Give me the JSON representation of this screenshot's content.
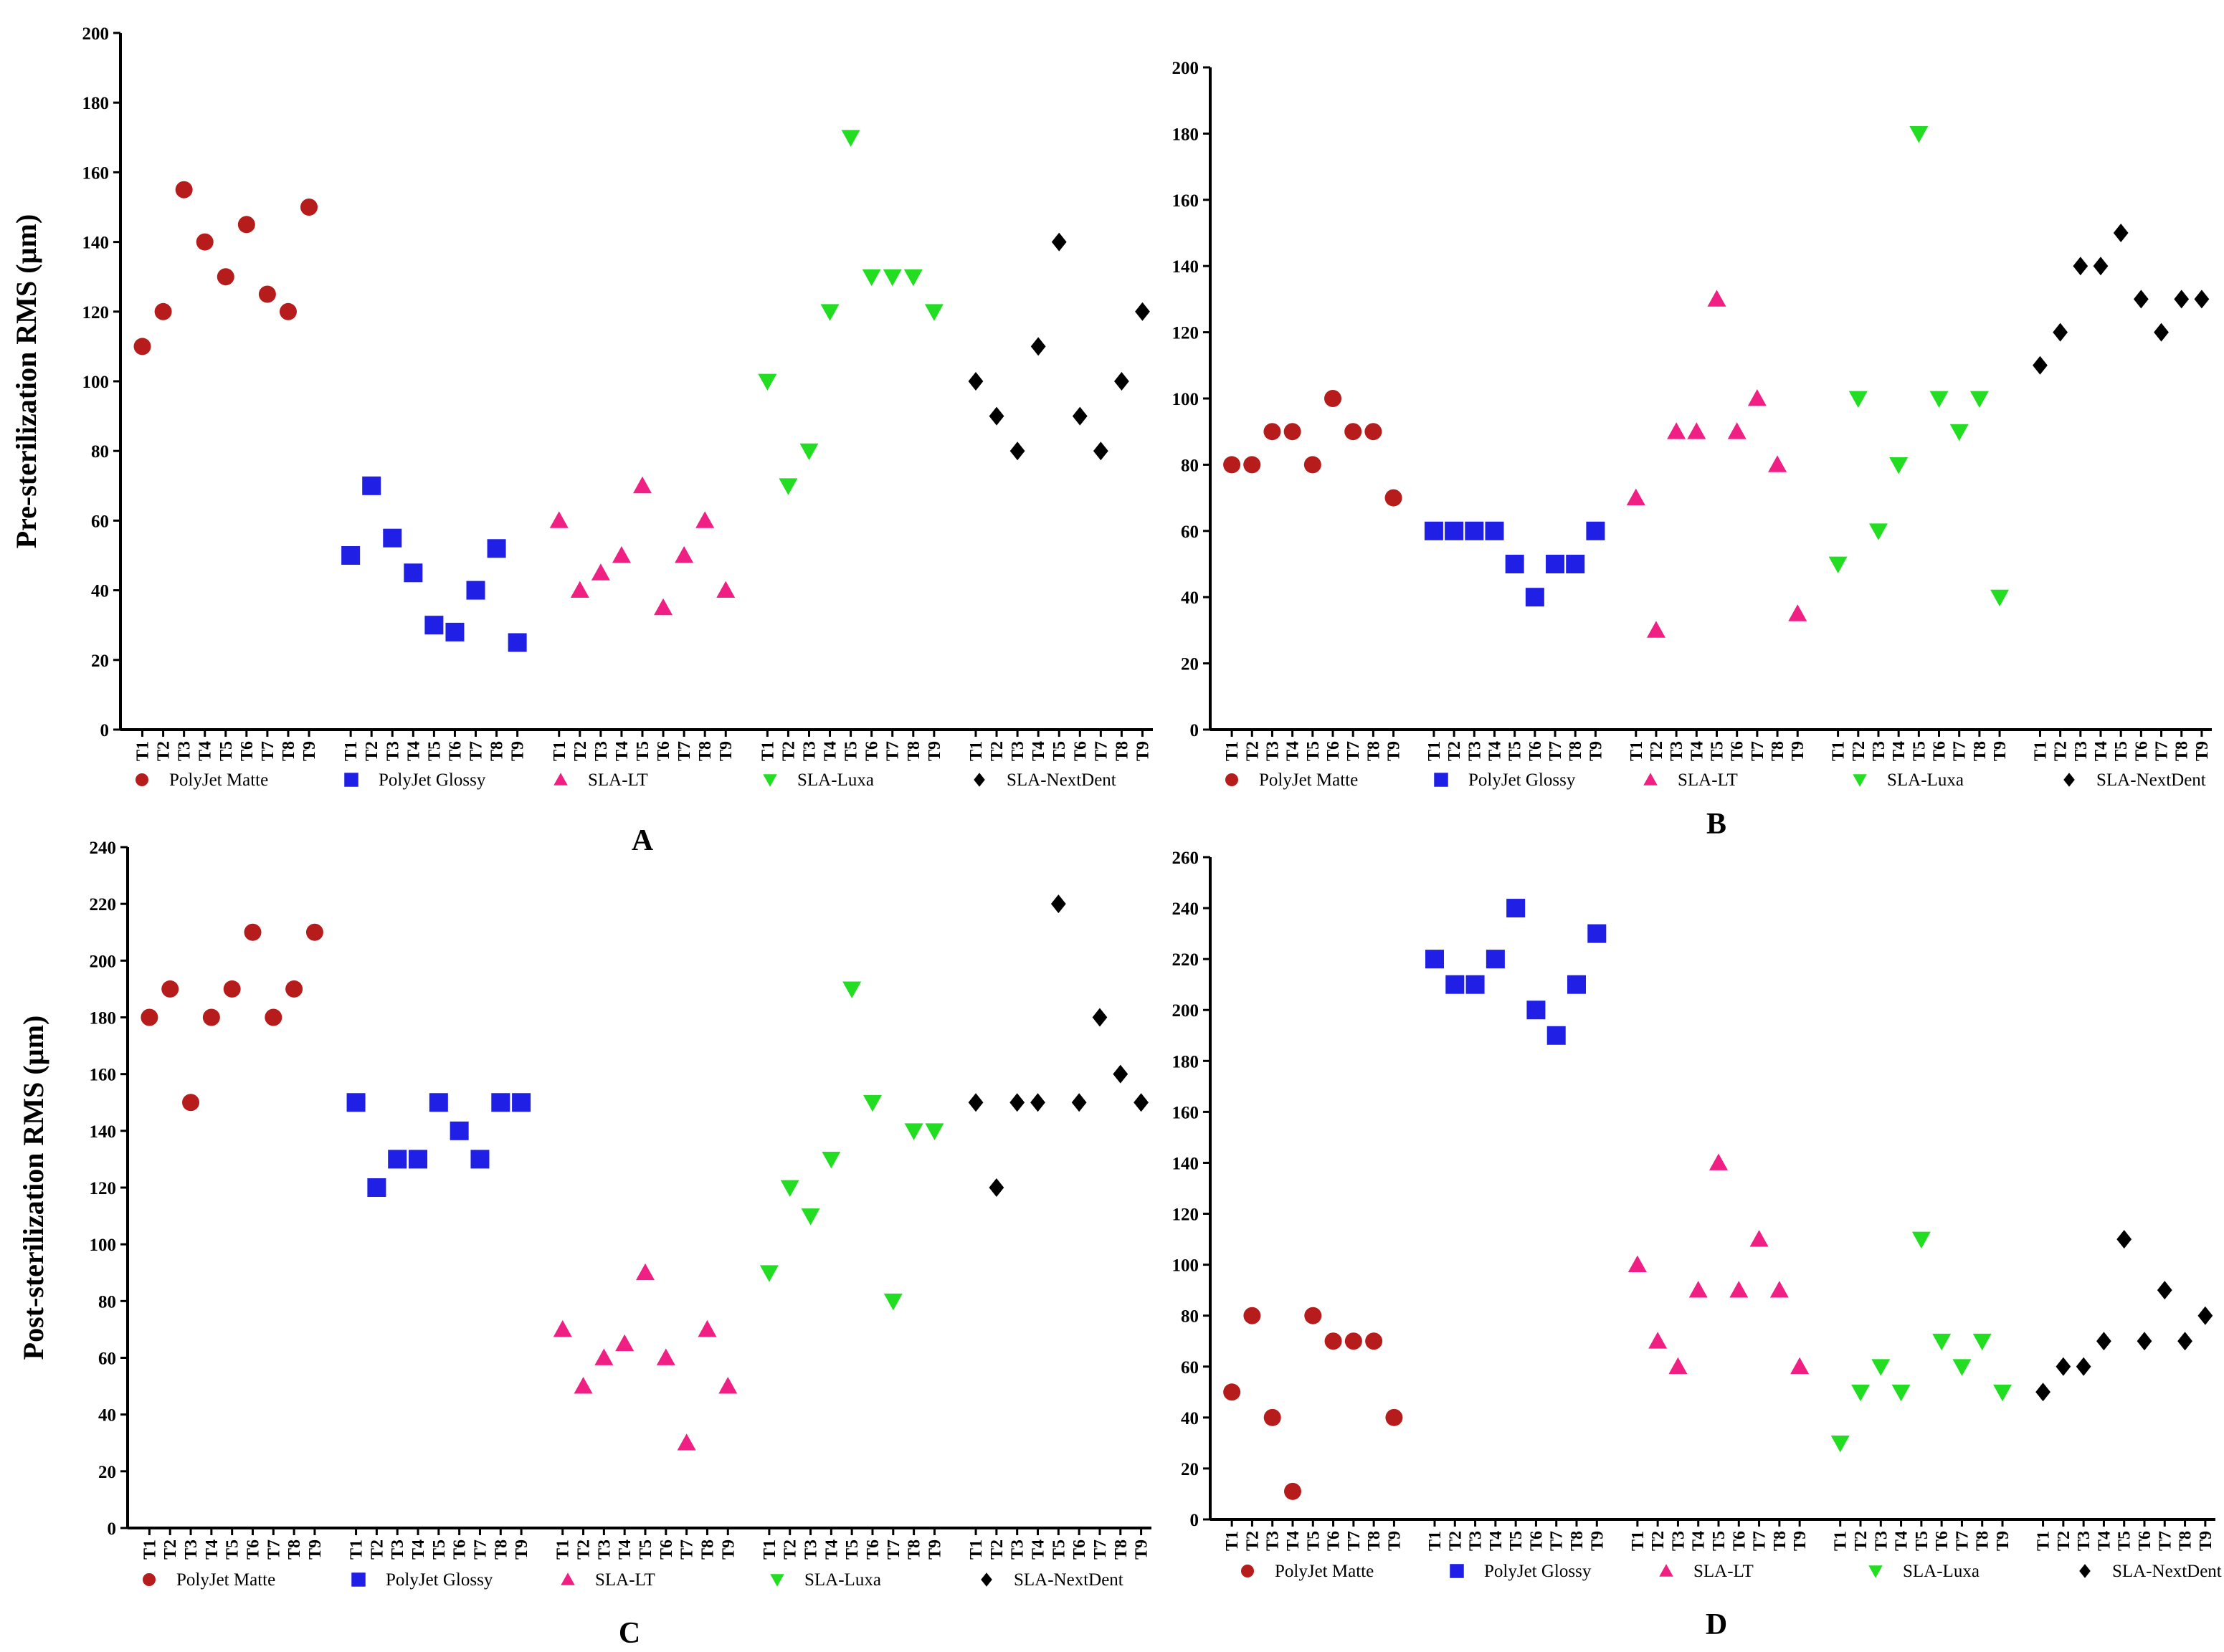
{
  "colors": {
    "PolyJet Matte": "#b71c1c",
    "PolyJet Glossy": "#1f1fe6",
    "SLA-LT": "#ef1f84",
    "SLA-Luxa": "#22dd22",
    "SLA-NextDent": "#000000"
  },
  "markers": {
    "PolyJet Matte": "circle",
    "PolyJet Glossy": "square",
    "SLA-LT": "triangle-up",
    "SLA-Luxa": "triangle-down",
    "SLA-NextDent": "diamond"
  },
  "chart_data": [
    {
      "type": "scatter",
      "panel_label": "A",
      "ylabel": "Pre-sterilization RMS (µm)",
      "ylim": [
        0,
        200
      ],
      "ytick_step": 20,
      "categories": [
        "T1",
        "T2",
        "T3",
        "T4",
        "T5",
        "T6",
        "T7",
        "T8",
        "T9"
      ],
      "series": [
        {
          "name": "PolyJet Matte",
          "values": [
            110,
            120,
            155,
            140,
            130,
            145,
            125,
            120,
            150
          ]
        },
        {
          "name": "PolyJet Glossy",
          "values": [
            50,
            70,
            55,
            45,
            30,
            28,
            40,
            52,
            25
          ]
        },
        {
          "name": "SLA-LT",
          "values": [
            60,
            40,
            45,
            50,
            70,
            35,
            50,
            60,
            40
          ]
        },
        {
          "name": "SLA-Luxa",
          "values": [
            100,
            70,
            80,
            120,
            170,
            130,
            130,
            130,
            120
          ]
        },
        {
          "name": "SLA-NextDent",
          "values": [
            100,
            90,
            80,
            110,
            140,
            90,
            80,
            100,
            120
          ]
        }
      ]
    },
    {
      "type": "scatter",
      "panel_label": "B",
      "ylabel": "",
      "ylim": [
        0,
        200
      ],
      "ytick_step": 20,
      "categories": [
        "T1",
        "T2",
        "T3",
        "T4",
        "T5",
        "T6",
        "T7",
        "T8",
        "T9"
      ],
      "series": [
        {
          "name": "PolyJet Matte",
          "values": [
            80,
            80,
            90,
            90,
            80,
            100,
            90,
            90,
            70
          ]
        },
        {
          "name": "PolyJet Glossy",
          "values": [
            60,
            60,
            60,
            60,
            50,
            40,
            50,
            50,
            60
          ]
        },
        {
          "name": "SLA-LT",
          "values": [
            70,
            30,
            90,
            90,
            130,
            90,
            100,
            80,
            35
          ]
        },
        {
          "name": "SLA-Luxa",
          "values": [
            50,
            100,
            60,
            80,
            180,
            100,
            90,
            100,
            40
          ]
        },
        {
          "name": "SLA-NextDent",
          "values": [
            110,
            120,
            140,
            140,
            150,
            130,
            120,
            130,
            130
          ]
        }
      ]
    },
    {
      "type": "scatter",
      "panel_label": "C",
      "ylabel": "Post-sterilization RMS (µm)",
      "ylim": [
        0,
        240
      ],
      "ytick_step": 20,
      "categories": [
        "T1",
        "T2",
        "T3",
        "T4",
        "T5",
        "T6",
        "T7",
        "T8",
        "T9"
      ],
      "series": [
        {
          "name": "PolyJet Matte",
          "values": [
            180,
            190,
            150,
            180,
            190,
            210,
            180,
            190,
            210
          ]
        },
        {
          "name": "PolyJet Glossy",
          "values": [
            150,
            120,
            130,
            130,
            150,
            140,
            130,
            150,
            150
          ]
        },
        {
          "name": "SLA-LT",
          "values": [
            70,
            50,
            60,
            65,
            90,
            60,
            30,
            70,
            50
          ]
        },
        {
          "name": "SLA-Luxa",
          "values": [
            90,
            120,
            110,
            130,
            190,
            150,
            80,
            140,
            140
          ]
        },
        {
          "name": "SLA-NextDent",
          "values": [
            150,
            120,
            150,
            150,
            220,
            150,
            180,
            160,
            150
          ]
        }
      ]
    },
    {
      "type": "scatter",
      "panel_label": "D",
      "ylabel": "",
      "ylim": [
        0,
        260
      ],
      "ytick_step": 20,
      "categories": [
        "T1",
        "T2",
        "T3",
        "T4",
        "T5",
        "T6",
        "T7",
        "T8",
        "T9"
      ],
      "series": [
        {
          "name": "PolyJet Matte",
          "values": [
            50,
            80,
            40,
            11,
            80,
            70,
            70,
            70,
            40
          ]
        },
        {
          "name": "PolyJet Glossy",
          "values": [
            220,
            210,
            210,
            220,
            240,
            200,
            190,
            210,
            230
          ]
        },
        {
          "name": "SLA-LT",
          "values": [
            100,
            70,
            60,
            90,
            140,
            90,
            110,
            90,
            60
          ]
        },
        {
          "name": "SLA-Luxa",
          "values": [
            30,
            50,
            60,
            50,
            110,
            70,
            60,
            70,
            50
          ]
        },
        {
          "name": "SLA-NextDent",
          "values": [
            50,
            60,
            60,
            70,
            110,
            70,
            90,
            70,
            80
          ]
        }
      ]
    }
  ]
}
